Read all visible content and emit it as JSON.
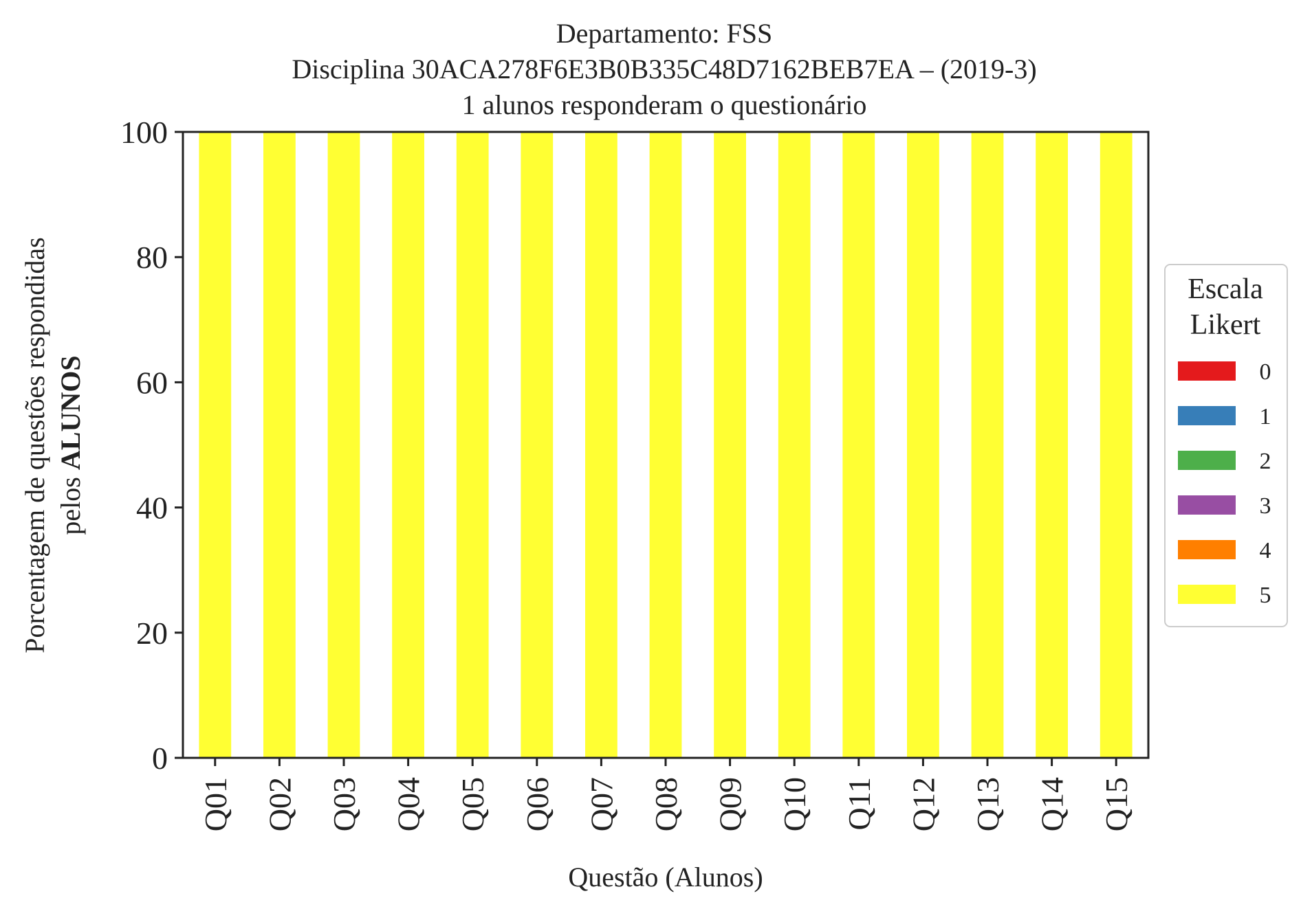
{
  "chart_data": {
    "type": "bar",
    "stacked": true,
    "title_lines": [
      "Departamento: FSS",
      "Disciplina 30ACA278F6E3B0B335C48D7162BEB7EA – (2019-3)",
      "1 alunos responderam o questionário"
    ],
    "xlabel": "Questão (Alunos)",
    "ylabel_line1": "Porcentagem de questões respondidas",
    "ylabel_line2_prefix": "pelos ",
    "ylabel_line2_bold": "ALUNOS",
    "ylim": [
      0,
      100
    ],
    "yticks": [
      "0",
      "20",
      "40",
      "60",
      "80",
      "100"
    ],
    "categories": [
      "Q01",
      "Q02",
      "Q03",
      "Q04",
      "Q05",
      "Q06",
      "Q07",
      "Q08",
      "Q09",
      "Q10",
      "Q11",
      "Q12",
      "Q13",
      "Q14",
      "Q15"
    ],
    "legend": {
      "title_lines": [
        "Escala",
        "Likert"
      ],
      "placement": "right-center"
    },
    "grid": false,
    "series": [
      {
        "name": "0",
        "color": "#e41a1c",
        "values": [
          0,
          0,
          0,
          0,
          0,
          0,
          0,
          0,
          0,
          0,
          0,
          0,
          0,
          0,
          0
        ]
      },
      {
        "name": "1",
        "color": "#377eb8",
        "values": [
          0,
          0,
          0,
          0,
          0,
          0,
          0,
          0,
          0,
          0,
          0,
          0,
          0,
          0,
          0
        ]
      },
      {
        "name": "2",
        "color": "#4daf4a",
        "values": [
          0,
          0,
          0,
          0,
          0,
          0,
          0,
          0,
          0,
          0,
          0,
          0,
          0,
          0,
          0
        ]
      },
      {
        "name": "3",
        "color": "#984ea3",
        "values": [
          0,
          0,
          0,
          0,
          0,
          0,
          0,
          0,
          0,
          0,
          0,
          0,
          0,
          0,
          0
        ]
      },
      {
        "name": "4",
        "color": "#ff7f00",
        "values": [
          0,
          0,
          0,
          0,
          0,
          0,
          0,
          0,
          0,
          0,
          0,
          0,
          0,
          0,
          0
        ]
      },
      {
        "name": "5",
        "color": "#ffff33",
        "values": [
          100,
          100,
          100,
          100,
          100,
          100,
          100,
          100,
          100,
          100,
          100,
          100,
          100,
          100,
          100
        ]
      }
    ]
  }
}
